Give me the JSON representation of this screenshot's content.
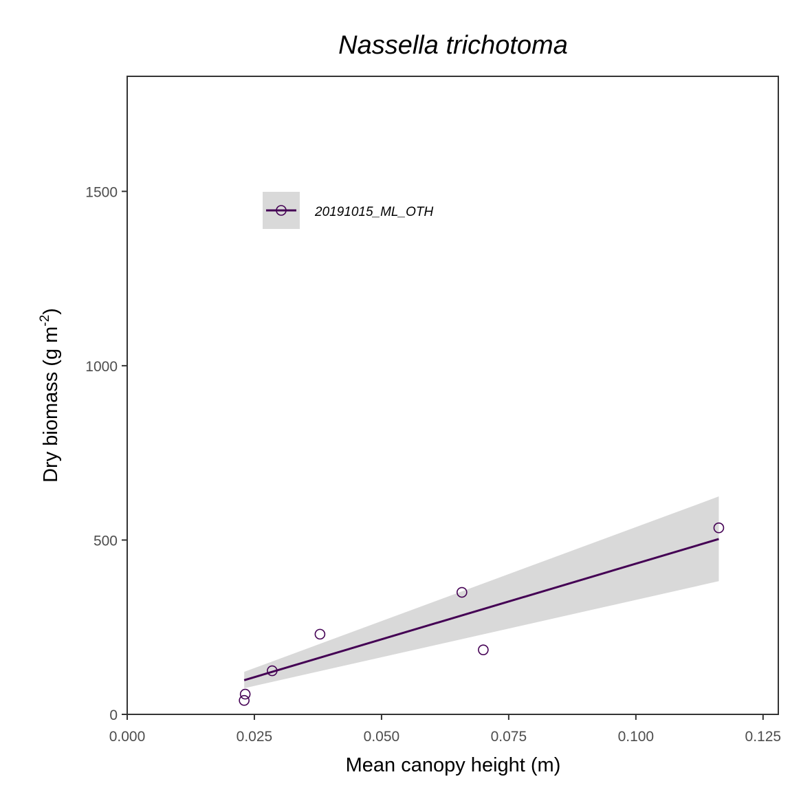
{
  "chart_data": {
    "type": "scatter",
    "title": "Nassella trichotoma",
    "xlabel": "Mean canopy height (m)",
    "ylabel": {
      "main": "Dry biomass (g m",
      "superscript": "-2",
      "close": ")"
    },
    "xlim": [
      0.0,
      0.128
    ],
    "ylim": [
      0,
      1830
    ],
    "x_ticks": [
      0.0,
      0.025,
      0.05,
      0.075,
      0.1,
      0.125
    ],
    "x_tick_labels": [
      "0.000",
      "0.025",
      "0.050",
      "0.075",
      "0.100",
      "0.125"
    ],
    "y_ticks": [
      0,
      500,
      1000,
      1500
    ],
    "y_tick_labels": [
      "0",
      "500",
      "1000",
      "1500"
    ],
    "grid": false,
    "legend_position": "top-left",
    "series": [
      {
        "name": "20191015_ML_OTH",
        "color": "#440154",
        "points": [
          {
            "x": 0.023,
            "y": 40
          },
          {
            "x": 0.0232,
            "y": 58
          },
          {
            "x": 0.0285,
            "y": 125
          },
          {
            "x": 0.0379,
            "y": 230
          },
          {
            "x": 0.0658,
            "y": 350
          },
          {
            "x": 0.07,
            "y": 185
          },
          {
            "x": 0.1163,
            "y": 535
          }
        ],
        "fit": {
          "x_start": 0.023,
          "x_end": 0.1163,
          "y_start": 98,
          "y_end": 503,
          "ci_upper_start": 122,
          "ci_upper_end": 625,
          "ci_lower_start": 75,
          "ci_lower_end": 382
        }
      }
    ],
    "ribbon_color": "#d9d9d9"
  }
}
